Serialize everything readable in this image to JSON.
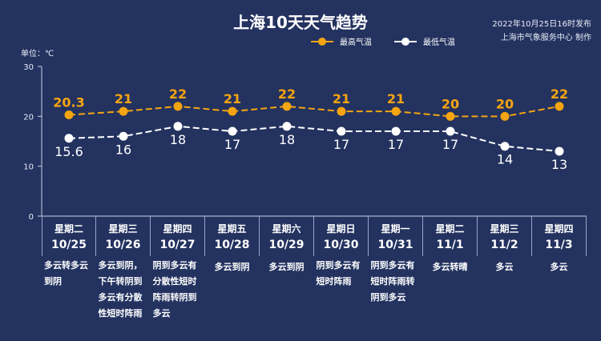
{
  "title": "上海10天天气趋势",
  "publish": "2022年10月25日16时发布",
  "producer": "上海市气象服务中心 制作",
  "chart_data": {
    "type": "line",
    "unit_label": "单位：℃",
    "ylim": [
      0,
      30
    ],
    "yticks": [
      "0",
      "10",
      "20",
      "30"
    ],
    "categories": [
      {
        "weekday": "星期二",
        "date": "10/25",
        "desc": "多云转多云到阴"
      },
      {
        "weekday": "星期三",
        "date": "10/26",
        "desc": "多云到阴，下午转阴到多云有分散性短时阵雨"
      },
      {
        "weekday": "星期四",
        "date": "10/27",
        "desc": "阴到多云有分散性短时阵雨转阴到多云"
      },
      {
        "weekday": "星期五",
        "date": "10/28",
        "desc": "多云到阴"
      },
      {
        "weekday": "星期六",
        "date": "10/29",
        "desc": "多云到阴"
      },
      {
        "weekday": "星期日",
        "date": "10/30",
        "desc": "阴到多云有短时阵雨"
      },
      {
        "weekday": "星期一",
        "date": "10/31",
        "desc": "阴到多云有短时阵雨转阴到多云"
      },
      {
        "weekday": "星期二",
        "date": "11/1",
        "desc": "多云转晴"
      },
      {
        "weekday": "星期三",
        "date": "11/2",
        "desc": "多云"
      },
      {
        "weekday": "星期四",
        "date": "11/3",
        "desc": "多云"
      }
    ],
    "series": [
      {
        "name": "最高气温",
        "color": "#f5a511",
        "labels": [
          "20.3",
          "21",
          "22",
          "21",
          "22",
          "21",
          "21",
          "20",
          "20",
          "22"
        ],
        "values": [
          20.3,
          21,
          22,
          21,
          22,
          21,
          21,
          20,
          20,
          22
        ]
      },
      {
        "name": "最低气温",
        "color": "#ffffff",
        "labels": [
          "15.6",
          "16",
          "18",
          "17",
          "18",
          "17",
          "17",
          "17",
          "14",
          "13"
        ],
        "values": [
          15.6,
          16,
          18,
          17,
          18,
          17,
          17,
          17,
          14,
          13
        ]
      }
    ],
    "legend": "top-right",
    "grid": false
  }
}
